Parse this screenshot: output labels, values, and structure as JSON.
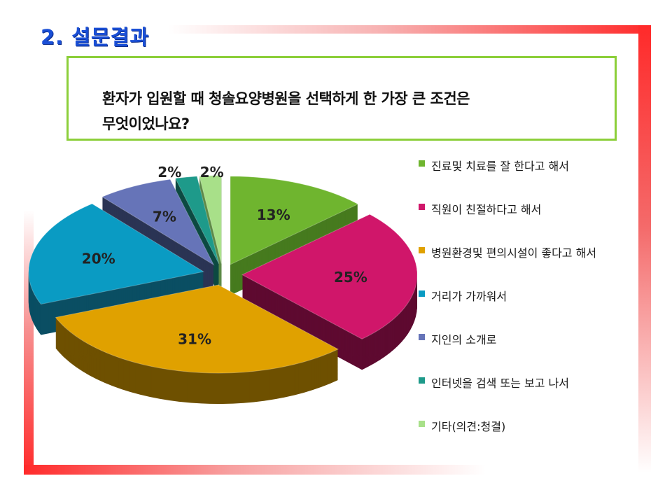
{
  "slide": {
    "title": "2. 설문결과"
  },
  "question": {
    "line1": "환자가 입원할 때 청솔요양병원을 선택하게 한 가장 큰 조건은",
    "line2": "무엇이었나요?"
  },
  "chart_data": {
    "type": "pie",
    "title": "",
    "legend_position": "right",
    "series": [
      {
        "name": "진료및 치료를 잘 한다고 해서",
        "value": 13,
        "label": "13%",
        "color": "#6fb52f",
        "side": "#467a1e"
      },
      {
        "name": "직원이 친절하다고 해서",
        "value": 25,
        "label": "25%",
        "color": "#d0166a",
        "side": "#5e0a30"
      },
      {
        "name": "병원환경및 편의시설이 좋다고 해서",
        "value": 31,
        "label": "31%",
        "color": "#e0a100",
        "side": "#6e5000"
      },
      {
        "name": "거리가 가까워서",
        "value": 20,
        "label": "20%",
        "color": "#0a9bc3",
        "side": "#0a4e63"
      },
      {
        "name": "지인의 소개로",
        "value": 7,
        "label": "7%",
        "color": "#6674b8",
        "side": "#2b3454"
      },
      {
        "name": "인터넷을 검색 또는 보고 나서",
        "value": 2,
        "label": "2%",
        "color": "#1e9a8a",
        "side": "#0d4a42"
      },
      {
        "name": "기타(의견:청결)",
        "value": 2,
        "label": "2%",
        "color": "#a8e089",
        "side": "#5e8a48"
      }
    ]
  }
}
